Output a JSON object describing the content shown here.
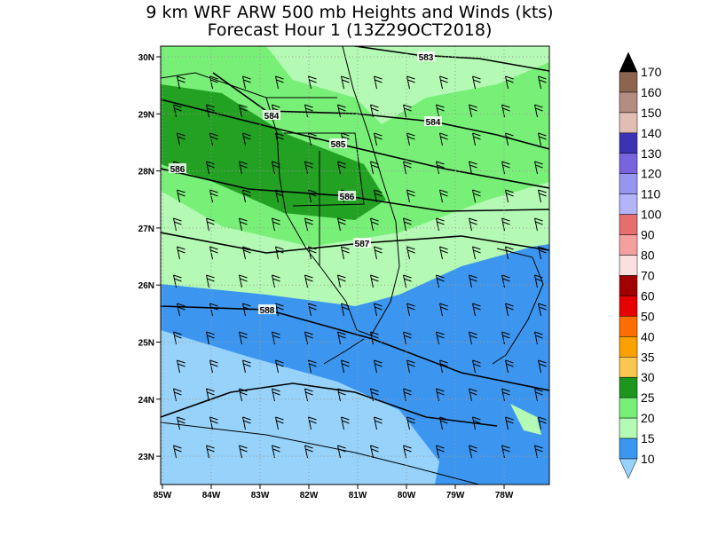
{
  "title": [
    "9 km WRF ARW 500 mb Heights and Winds (kts)",
    "Forecast Hour 1 (13Z29OCT2018)"
  ],
  "map": {
    "lat_labels": [
      "30N",
      "29N",
      "28N",
      "27N",
      "26N",
      "25N",
      "24N",
      "23N"
    ],
    "lon_labels": [
      "85W",
      "84W",
      "83W",
      "82W",
      "81W",
      "80W",
      "79W",
      "78W"
    ],
    "contour_labels": [
      "583",
      "584",
      "584",
      "585",
      "586",
      "586",
      "587",
      "588"
    ]
  },
  "colorbar": {
    "labels": [
      "170",
      "160",
      "150",
      "140",
      "130",
      "120",
      "110",
      "100",
      "90",
      "80",
      "70",
      "60",
      "50",
      "40",
      "35",
      "30",
      "25",
      "20",
      "15",
      "10"
    ],
    "colors": [
      "#000000",
      "#8c6450",
      "#b48c82",
      "#e1beb4",
      "#3c32b4",
      "#7864dc",
      "#9696f0",
      "#b4b4fa",
      "#e66e6e",
      "#f5a0a0",
      "#fae1e1",
      "#a00000",
      "#e60000",
      "#ff6e00",
      "#faa000",
      "#fac850",
      "#1e961e",
      "#78f078",
      "#b4fab4",
      "#3c96f0",
      "#96d2fa",
      "#b4f0fa"
    ]
  }
}
